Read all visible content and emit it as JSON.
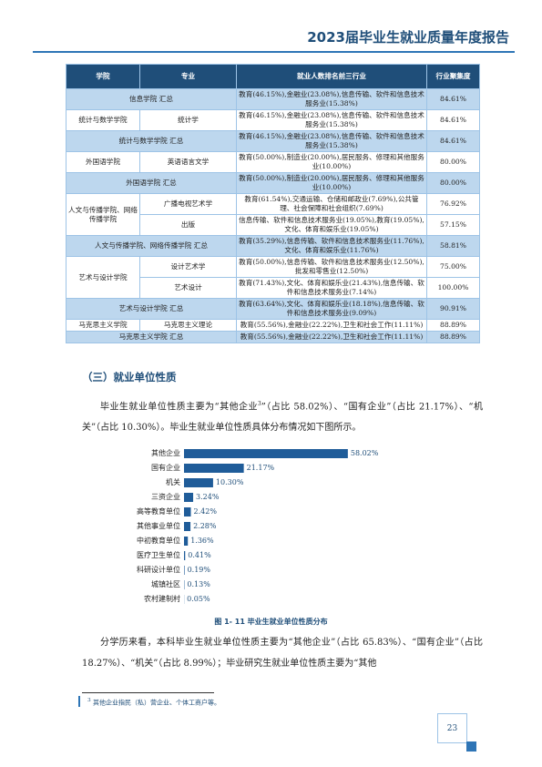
{
  "header": {
    "title": "2023届毕业生就业质量年度报告"
  },
  "table": {
    "headers": [
      "学院",
      "专业",
      "就业人数排名前三行业",
      "行业聚集度"
    ],
    "rows": [
      [
        "信息学院 汇总",
        "教育(46.15%),金融业(23.08%),信息传输、软件和信息技术服务业(15.38%)",
        "84.61%"
      ],
      [
        "统计与数学学院",
        "统计学",
        "教育(46.15%),金融业(23.08%),信息传输、软件和信息技术服务业(15.38%)",
        "84.61%"
      ],
      [
        "统计与数学学院 汇总",
        "教育(46.15%),金融业(23.08%),信息传输、软件和信息技术服务业(15.38%)",
        "84.61%"
      ],
      [
        "外国语学院",
        "英语语言文学",
        "教育(50.00%),制造业(20.00%),居民服务、修理和其他服务业(10.00%)",
        "80.00%"
      ],
      [
        "外国语学院 汇总",
        "教育(50.00%),制造业(20.00%),居民服务、修理和其他服务业(10.00%)",
        "80.00%"
      ],
      [
        "人文与传播学院、网络传播学院",
        "广播电视艺术学",
        "教育(61.54%),交通运输、仓储和邮政业(7.69%),公共管理、社会保障和社会组织(7.69%)",
        "76.92%"
      ],
      [
        "出版",
        "信息传输、软件和信息技术服务业(19.05%),教育(19.05%),文化、体育和娱乐业(19.05%)",
        "57.15%"
      ],
      [
        "人文与传播学院、网络传播学院 汇总",
        "教育(35.29%),信息传输、软件和信息技术服务业(11.76%),文化、体育和娱乐业(11.76%)",
        "58.81%"
      ],
      [
        "艺术与设计学院",
        "设计艺术学",
        "教育(50.00%),信息传输、软件和信息技术服务业(12.50%),批发和零售业(12.50%)",
        "75.00%"
      ],
      [
        "艺术设计",
        "教育(71.43%),文化、体育和娱乐业(21.43%),信息传输、软件和信息技术服务业(7.14%)",
        "100.00%"
      ],
      [
        "艺术与设计学院 汇总",
        "教育(63.64%),文化、体育和娱乐业(18.18%),信息传输、软件和信息技术服务业(9.09%)",
        "90.91%"
      ],
      [
        "马克思主义学院",
        "马克思主义理论",
        "教育(55.56%),金融业(22.22%),卫生和社会工作(11.11%)",
        "88.89%"
      ],
      [
        "马克思主义学院 汇总",
        "教育(55.56%),金融业(22.22%),卫生和社会工作(11.11%)",
        "88.89%"
      ]
    ]
  },
  "section": {
    "title": "（三）就业单位性质"
  },
  "paragraph1": {
    "before": "毕业生就业单位性质主要为“其他企业",
    "footnote_ref": "3",
    "after": "”（占比 58.02%）、“国有企业”（占比 21.17%）、“机关”（占比 10.30%）。毕业生就业单位性质具体分布情况如下图所示。"
  },
  "chart_data": {
    "type": "bar",
    "orientation": "horizontal",
    "color": "#1f5c99",
    "categories": [
      "其他企业",
      "国有企业",
      "机关",
      "三资企业",
      "高等教育单位",
      "其他事业单位",
      "中初教育单位",
      "医疗卫生单位",
      "科研设计单位",
      "城镇社区",
      "农村建制村"
    ],
    "values": [
      58.02,
      21.17,
      10.3,
      3.24,
      2.42,
      2.28,
      1.36,
      0.41,
      0.19,
      0.13,
      0.05
    ],
    "value_labels": [
      "58.02%",
      "21.17%",
      "10.30%",
      "3.24%",
      "2.42%",
      "2.28%",
      "1.36%",
      "0.41%",
      "0.19%",
      "0.13%",
      "0.05%"
    ],
    "caption": "图 1- 11  毕业生就业单位性质分布"
  },
  "paragraph2": "分学历来看，本科毕业生就业单位性质主要为“其他企业”（占比 65.83%）、“国有企业”（占比 18.27%）、“机关”（占比 8.99%）；毕业研究生就业单位性质主要为“其他",
  "footnote": {
    "mark": "3",
    "text": "其他企业指民（私）营企业、个体工商户等。"
  },
  "page_number": "23"
}
